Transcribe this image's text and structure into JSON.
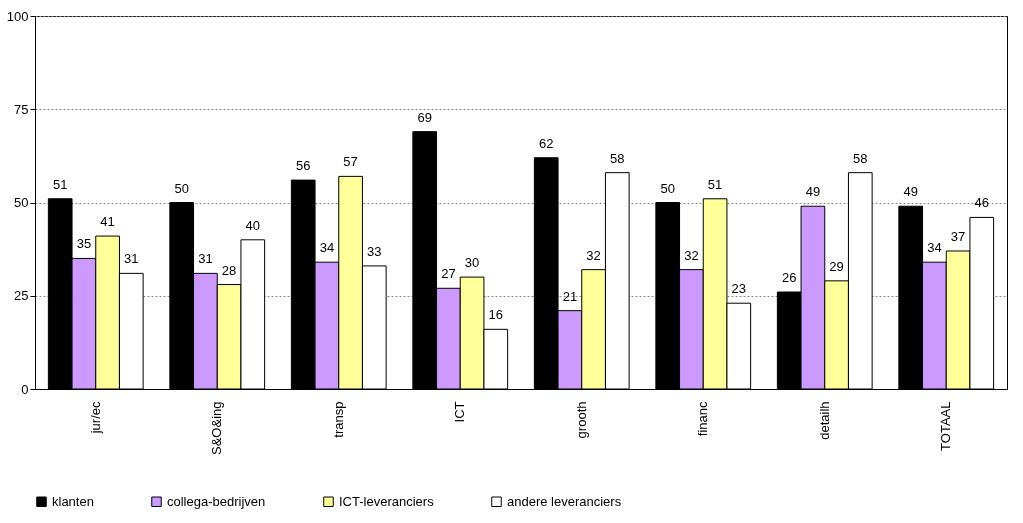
{
  "chart_data": {
    "type": "bar",
    "categories": [
      "jur/ec",
      "S&O&ing",
      "transp",
      "ICT",
      "grooth",
      "financ",
      "detailh",
      "TOTAAL"
    ],
    "series": [
      {
        "name": "klanten",
        "color": "#000000",
        "values": [
          51,
          50,
          56,
          69,
          62,
          50,
          26,
          49
        ]
      },
      {
        "name": "collega-bedrijven",
        "color": "#cc99ff",
        "values": [
          35,
          31,
          34,
          27,
          21,
          32,
          49,
          34
        ]
      },
      {
        "name": "ICT-leveranciers",
        "color": "#ffff99",
        "values": [
          41,
          28,
          57,
          30,
          32,
          51,
          29,
          37
        ]
      },
      {
        "name": "andere leveranciers",
        "color": "#ffffff",
        "values": [
          31,
          40,
          33,
          16,
          58,
          23,
          58,
          46
        ]
      }
    ],
    "ylim": [
      0,
      100
    ],
    "yticks": [
      0,
      25,
      50,
      75,
      100
    ],
    "grid": "y",
    "legend": "bottom",
    "data_labels": true
  }
}
